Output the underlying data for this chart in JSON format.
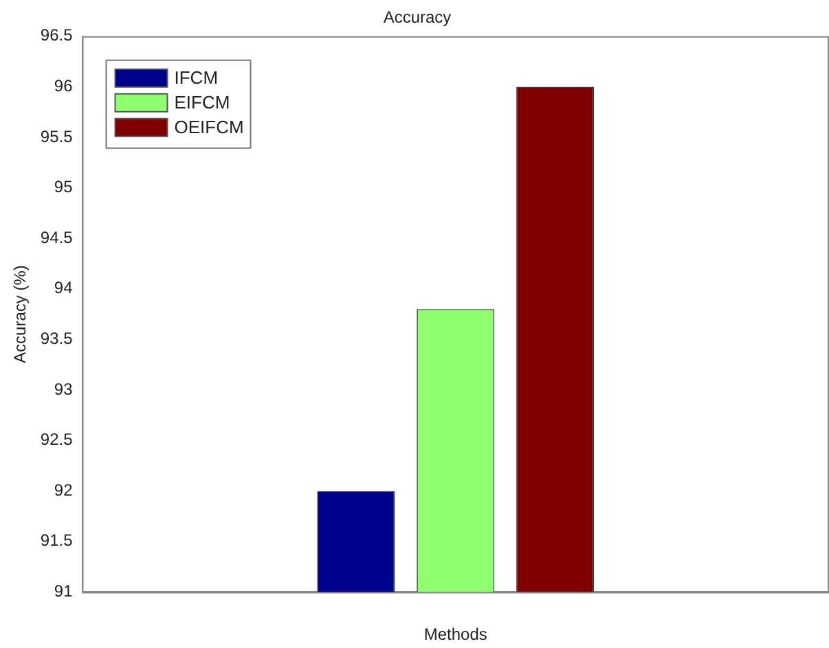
{
  "chart_data": {
    "type": "bar",
    "title": "Accuracy",
    "xlabel": "Methods",
    "ylabel": "Accuracy (%)",
    "categories": [
      null
    ],
    "series": [
      {
        "name": "IFCM",
        "color": "#00008f",
        "values": [
          92
        ]
      },
      {
        "name": "EIFCM",
        "color": "#8fff70",
        "values": [
          93.8
        ]
      },
      {
        "name": "OEIFCM",
        "color": "#800000",
        "values": [
          96
        ]
      }
    ],
    "ylim": [
      91,
      96.5
    ],
    "yticks": [
      91,
      91.5,
      92,
      92.5,
      93,
      93.5,
      94,
      94.5,
      95,
      95.5,
      96,
      96.5
    ],
    "grid": false,
    "legend": "top left"
  }
}
